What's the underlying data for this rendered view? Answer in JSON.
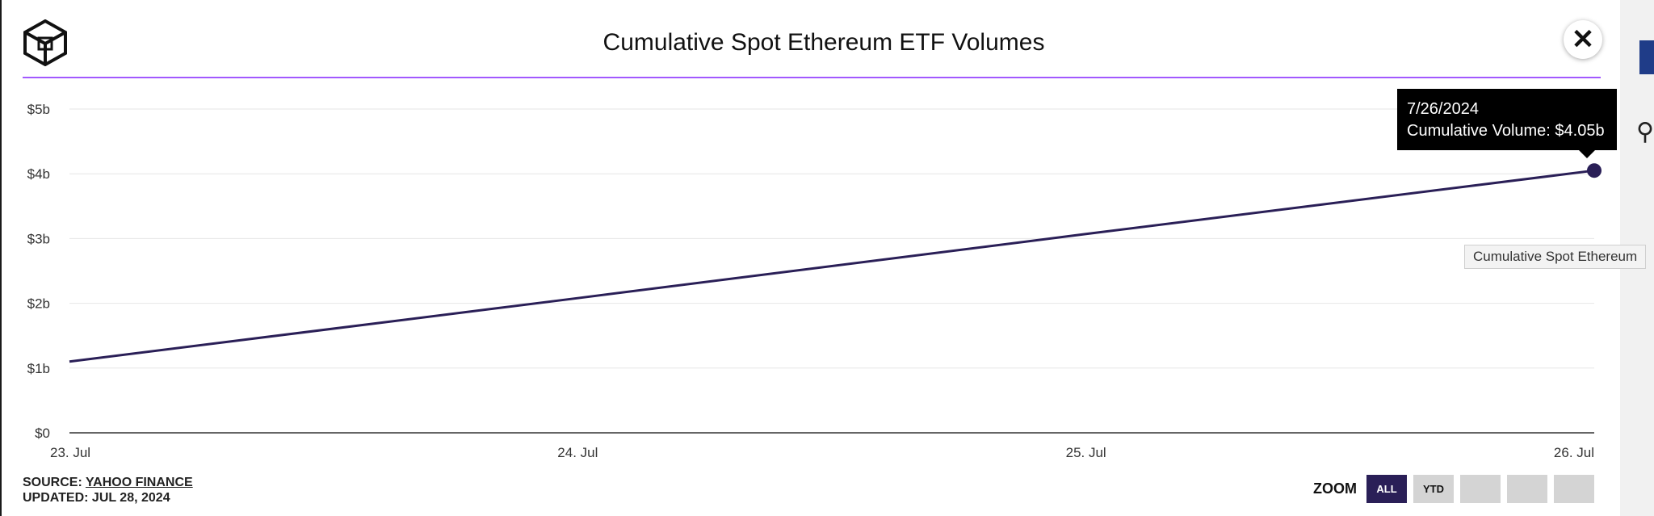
{
  "title": "Cumulative Spot Ethereum ETF Volumes",
  "tooltip": {
    "date": "7/26/2024",
    "text": "Cumulative Volume: $4.05b"
  },
  "series_tooltip": "Cumulative Spot Ethereum",
  "source": {
    "prefix": "SOURCE:",
    "name": "YAHOO FINANCE",
    "updated": "UPDATED: JUL 28, 2024"
  },
  "zoom": {
    "label": "ZOOM",
    "buttons": [
      "ALL",
      "YTD",
      "",
      "",
      ""
    ],
    "active": "ALL"
  },
  "colors": {
    "line": "#2a1f57",
    "accent_rule": "#a259ff",
    "active_button": "#2a1f57"
  },
  "chart_data": {
    "type": "line",
    "title": "Cumulative Spot Ethereum ETF Volumes",
    "x": [
      "23. Jul",
      "24. Jul",
      "25. Jul",
      "26. Jul"
    ],
    "series": [
      {
        "name": "Cumulative Spot Ethereum",
        "values": [
          1.1,
          2.08,
          3.07,
          4.05
        ]
      }
    ],
    "ylim": [
      0,
      5
    ],
    "yticks": [
      0,
      1,
      2,
      3,
      4,
      5
    ],
    "ytick_labels": [
      "$0",
      "$1b",
      "$2b",
      "$3b",
      "$4b",
      "$5b"
    ],
    "grid": true,
    "highlight_index": 3
  }
}
